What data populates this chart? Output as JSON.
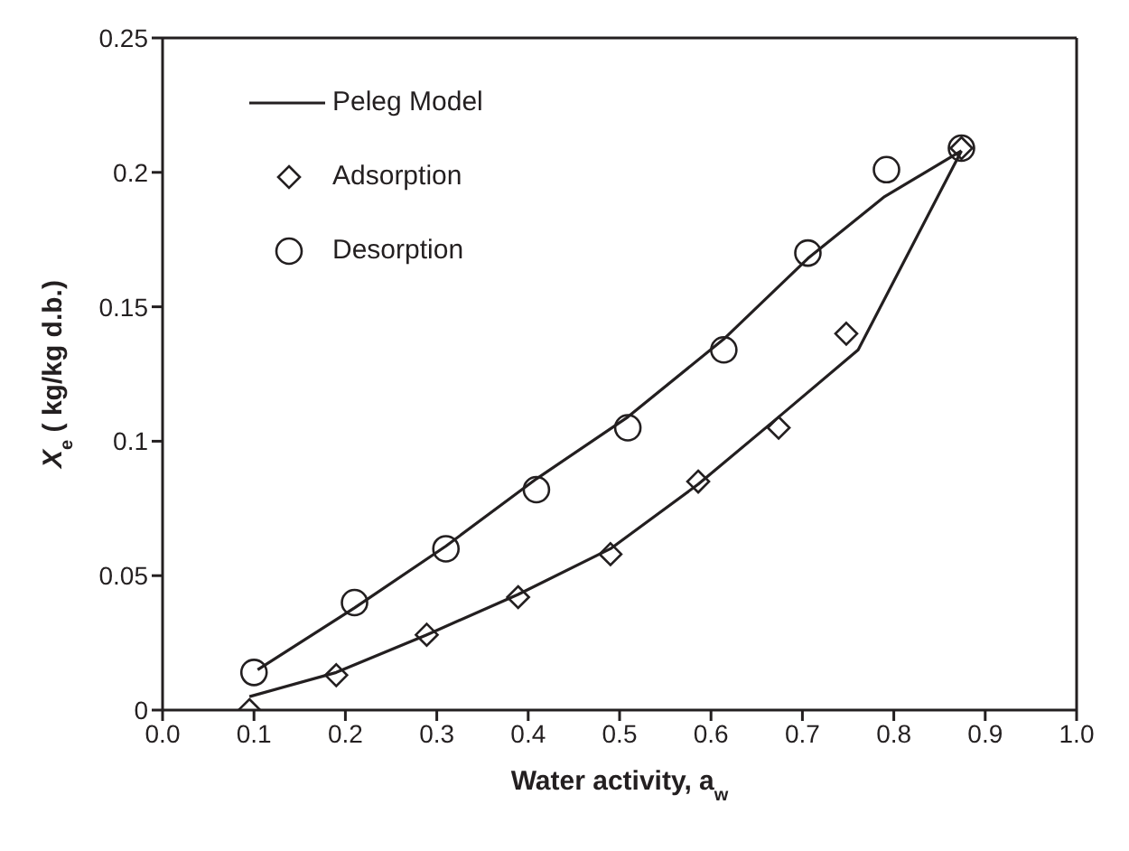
{
  "chart_data": {
    "type": "scatter",
    "xlabel": "Water activity, a$_{w}$",
    "ylabel": "X$_{e}$ ( kg/kg d.b.)",
    "xlim": [
      0,
      1
    ],
    "ylim": [
      0,
      0.25
    ],
    "xticks": [
      {
        "value": 0,
        "label": "0.0"
      },
      {
        "value": 0.1,
        "label": "0.1"
      },
      {
        "value": 0.2,
        "label": "0.2"
      },
      {
        "value": 0.3,
        "label": "0.3"
      },
      {
        "value": 0.4,
        "label": "0.4"
      },
      {
        "value": 0.5,
        "label": "0.5"
      },
      {
        "value": 0.6,
        "label": "0.6"
      },
      {
        "value": 0.7,
        "label": "0.7"
      },
      {
        "value": 0.8,
        "label": "0.8"
      },
      {
        "value": 0.9,
        "label": "0.9"
      },
      {
        "value": 1,
        "label": "1.0"
      }
    ],
    "yticks": [
      0,
      0.05,
      0.1,
      0.15,
      0.2,
      0.25
    ],
    "grid": false,
    "legend": "top left",
    "series": [
      {
        "name": "Peleg Model",
        "type": "line",
        "marker": "none",
        "line_style": "solid",
        "color": "#231f20",
        "x": [
          0.095,
          0.19,
          0.289,
          0.389,
          0.49,
          0.586,
          0.674,
          0.761,
          0.874
        ],
        "values": [
          0.005,
          0.014,
          0.028,
          0.043,
          0.06,
          0.084,
          0.109,
          0.134,
          0.208
        ]
      },
      {
        "type": "line",
        "marker": "none",
        "line_style": "solid",
        "color": "#231f20",
        "x": [
          0.104,
          0.21,
          0.31,
          0.409,
          0.509,
          0.614,
          0.706,
          0.79,
          0.874
        ],
        "values": [
          0.015,
          0.038,
          0.061,
          0.086,
          0.109,
          0.138,
          0.168,
          0.191,
          0.208
        ]
      },
      {
        "name": "Adsorption",
        "marker": "diamond",
        "color": "#231f20",
        "x": [
          0.095,
          0.19,
          0.289,
          0.389,
          0.49,
          0.586,
          0.674,
          0.748,
          0.874
        ],
        "values": [
          0.0,
          0.013,
          0.028,
          0.042,
          0.058,
          0.085,
          0.105,
          0.14,
          0.209
        ]
      },
      {
        "name": "Desorption",
        "marker": "circle",
        "color": "#231f20",
        "x": [
          0.1,
          0.21,
          0.31,
          0.409,
          0.509,
          0.614,
          0.706,
          0.792,
          0.874
        ],
        "values": [
          0.014,
          0.04,
          0.06,
          0.082,
          0.105,
          0.134,
          0.17,
          0.201,
          0.209
        ]
      }
    ]
  }
}
